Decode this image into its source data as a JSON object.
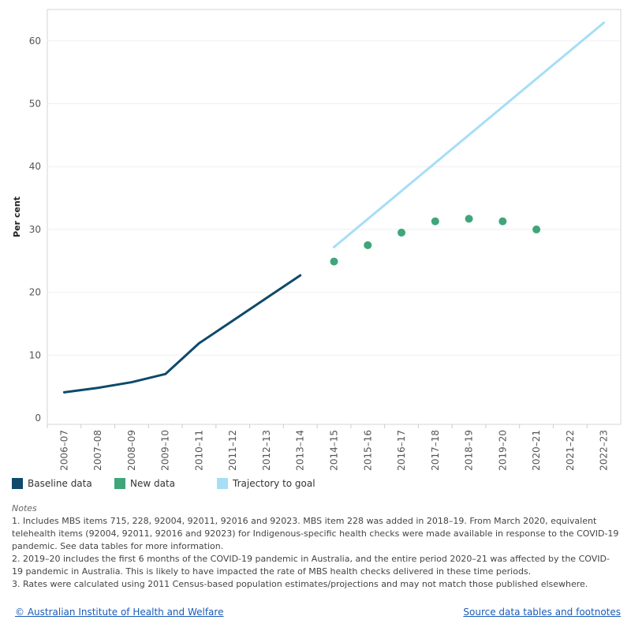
{
  "chart_data": {
    "type": "line",
    "categories": [
      "2006–07",
      "2007–08",
      "2008–09",
      "2009–10",
      "2010–11",
      "2011–12",
      "2012–13",
      "2013–14",
      "2014–15",
      "2015–16",
      "2016–17",
      "2017–18",
      "2018–19",
      "2019–20",
      "2020–21",
      "2021–22",
      "2022–23"
    ],
    "ylabel": "Per cent",
    "ylim": [
      0,
      65
    ],
    "yticks": [
      0,
      10,
      20,
      30,
      40,
      50,
      60
    ],
    "grid": true,
    "legend_position": "bottom",
    "series": [
      {
        "name": "Baseline data",
        "kind": "line",
        "color": "#0d4a6b",
        "points": [
          {
            "x": "2006–07",
            "y": 4.1
          },
          {
            "x": "2007–08",
            "y": 4.8
          },
          {
            "x": "2008–09",
            "y": 5.7
          },
          {
            "x": "2009–10",
            "y": 7.0
          },
          {
            "x": "2010–11",
            "y": 11.9
          },
          {
            "x": "2011–12",
            "y": 15.5
          },
          {
            "x": "2012–13",
            "y": 19.1
          },
          {
            "x": "2013–14",
            "y": 22.7
          }
        ]
      },
      {
        "name": "New data",
        "kind": "points",
        "color": "#3fa67a",
        "points": [
          {
            "x": "2014–15",
            "y": 24.9
          },
          {
            "x": "2015–16",
            "y": 27.5
          },
          {
            "x": "2016–17",
            "y": 29.5
          },
          {
            "x": "2017–18",
            "y": 31.3
          },
          {
            "x": "2018–19",
            "y": 31.7
          },
          {
            "x": "2019–20",
            "y": 31.3
          },
          {
            "x": "2020–21",
            "y": 30.0
          }
        ]
      },
      {
        "name": "Trajectory to goal",
        "kind": "line",
        "color": "#a6def5",
        "points": [
          {
            "x": "2014–15",
            "y": 27.2
          },
          {
            "x": "2022–23",
            "y": 62.9
          }
        ]
      }
    ]
  },
  "notes": {
    "title": "Notes",
    "items": [
      "1. Includes MBS items 715, 228, 92004, 92011, 92016 and 92023. MBS item 228 was added in 2018–19. From March 2020, equivalent telehealth items (92004, 92011, 92016 and 92023) for Indigenous-specific health checks were made available in response to the COVID-19 pandemic. See data tables for more information.",
      "2. 2019–20 includes the first 6 months of the COVID-19 pandemic in Australia, and the entire period 2020–21 was affected by the COVID-19 pandemic in Australia. This is likely to have impacted the rate of MBS health checks delivered in these time periods.",
      "3. Rates were calculated using 2011 Census-based population estimates/projections and may not match those published elsewhere."
    ]
  },
  "footer": {
    "copyright": "© Australian Institute of Health and Welfare",
    "source_link": "Source data tables and footnotes"
  }
}
